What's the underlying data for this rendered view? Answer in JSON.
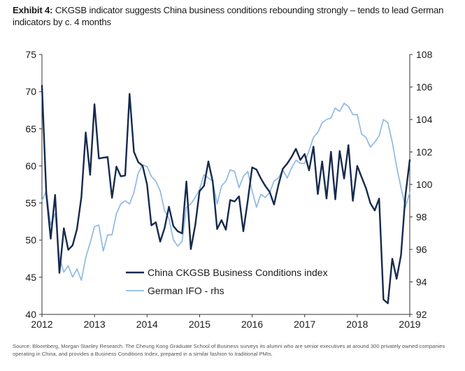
{
  "title": {
    "exhibit": "Exhibit 4:",
    "text": "CKGSB indicator suggests China business conditions rebounding strongly – tends to lead German indicators by c. 4 months"
  },
  "source": "Source: Bloomberg, Morgan Stanley Research. The Cheung Kong Graduate School of Business surveys its alumni who are senior executives at around 300 privately owned companies operating in China, and provides a Business Conditions Index, prepared in a similar fashion to traditional PMIs.",
  "colors": {
    "ckgsb": "#162a4d",
    "ifo": "#8fb9e4",
    "axis": "#333333",
    "text": "#1a1a1a"
  },
  "chart_data": {
    "type": "line",
    "title": "CKGSB indicator suggests China business conditions rebounding strongly – tends to lead German indicators by c. 4 months",
    "x_tick_labels": [
      "2012",
      "2013",
      "2014",
      "2015",
      "2016",
      "2017",
      "2018",
      "2019"
    ],
    "x_range": [
      2012.0,
      2019.0
    ],
    "y_left": {
      "range": [
        40,
        75
      ],
      "ticks": [
        "40",
        "45",
        "50",
        "55",
        "60",
        "65",
        "70",
        "75"
      ]
    },
    "y_right": {
      "range": [
        92,
        108
      ],
      "ticks": [
        "92",
        "94",
        "96",
        "98",
        "100",
        "102",
        "104",
        "106",
        "108"
      ]
    },
    "grid": false,
    "legend": {
      "position": "bottom-center",
      "entries": [
        "China CKGSB Business Conditions index",
        "German IFO - rhs"
      ]
    },
    "series": [
      {
        "name": "China CKGSB Business Conditions index",
        "axis": "left",
        "x": [
          2012.0,
          2012.083,
          2012.167,
          2012.25,
          2012.333,
          2012.417,
          2012.5,
          2012.583,
          2012.667,
          2012.75,
          2012.833,
          2012.917,
          2013.0,
          2013.083,
          2013.167,
          2013.25,
          2013.333,
          2013.417,
          2013.5,
          2013.583,
          2013.667,
          2013.75,
          2013.833,
          2013.917,
          2014.0,
          2014.083,
          2014.167,
          2014.25,
          2014.333,
          2014.417,
          2014.5,
          2014.583,
          2014.667,
          2014.75,
          2014.833,
          2014.917,
          2015.0,
          2015.083,
          2015.167,
          2015.25,
          2015.333,
          2015.417,
          2015.5,
          2015.583,
          2015.667,
          2015.75,
          2015.833,
          2015.917,
          2016.0,
          2016.083,
          2016.167,
          2016.25,
          2016.333,
          2016.417,
          2016.5,
          2016.583,
          2016.667,
          2016.75,
          2016.833,
          2016.917,
          2017.0,
          2017.083,
          2017.167,
          2017.25,
          2017.333,
          2017.417,
          2017.5,
          2017.583,
          2017.667,
          2017.75,
          2017.833,
          2017.917,
          2018.0,
          2018.083,
          2018.167,
          2018.25,
          2018.333,
          2018.417,
          2018.5,
          2018.583,
          2018.667,
          2018.75,
          2018.833,
          2018.917,
          2019.0
        ],
        "values": [
          70.8,
          56.3,
          50.2,
          56.1,
          45.6,
          51.6,
          48.7,
          49.3,
          51.5,
          55.8,
          64.5,
          58.8,
          68.3,
          61.0,
          61.1,
          61.2,
          55.7,
          59.9,
          58.6,
          58.7,
          69.7,
          61.9,
          60.5,
          60.0,
          57.5,
          52.0,
          52.4,
          49.8,
          51.6,
          54.5,
          51.9,
          51.2,
          50.9,
          57.9,
          48.8,
          52.0,
          56.6,
          57.3,
          60.6,
          57.9,
          51.5,
          52.7,
          51.4,
          55.4,
          55.2,
          55.9,
          51.2,
          55.3,
          59.8,
          59.5,
          58.3,
          57.3,
          56.5,
          54.8,
          57.4,
          59.6,
          60.3,
          61.2,
          62.3,
          60.8,
          61.6,
          59.4,
          62.6,
          56.2,
          60.6,
          55.6,
          61.9,
          55.5,
          62.0,
          58.3,
          62.8,
          55.3,
          60.0,
          58.5,
          57.0,
          55.0,
          54.0,
          55.6,
          42.0,
          41.5,
          47.5,
          44.8,
          48.0,
          56.0,
          60.8
        ]
      },
      {
        "name": "German IFO - rhs",
        "axis": "right",
        "x": [
          2012.0,
          2012.083,
          2012.167,
          2012.25,
          2012.333,
          2012.417,
          2012.5,
          2012.583,
          2012.667,
          2012.75,
          2012.833,
          2012.917,
          2013.0,
          2013.083,
          2013.167,
          2013.25,
          2013.333,
          2013.417,
          2013.5,
          2013.583,
          2013.667,
          2013.75,
          2013.833,
          2013.917,
          2014.0,
          2014.083,
          2014.167,
          2014.25,
          2014.333,
          2014.417,
          2014.5,
          2014.583,
          2014.667,
          2014.75,
          2014.833,
          2014.917,
          2015.0,
          2015.083,
          2015.167,
          2015.25,
          2015.333,
          2015.417,
          2015.5,
          2015.583,
          2015.667,
          2015.75,
          2015.833,
          2015.917,
          2016.0,
          2016.083,
          2016.167,
          2016.25,
          2016.333,
          2016.417,
          2016.5,
          2016.583,
          2016.667,
          2016.75,
          2016.833,
          2016.917,
          2017.0,
          2017.083,
          2017.167,
          2017.25,
          2017.333,
          2017.417,
          2017.5,
          2017.583,
          2017.667,
          2017.75,
          2017.833,
          2017.917,
          2018.0,
          2018.083,
          2018.167,
          2018.25,
          2018.333,
          2018.417,
          2018.5,
          2018.583,
          2018.667,
          2018.75,
          2018.833,
          2018.917,
          2019.0
        ],
        "values": [
          99.0,
          99.6,
          97.5,
          98.2,
          95.5,
          94.6,
          95.0,
          94.3,
          94.8,
          94.1,
          95.5,
          96.4,
          97.4,
          97.5,
          95.9,
          96.9,
          96.9,
          98.2,
          98.8,
          99.0,
          98.8,
          99.5,
          100.7,
          101.2,
          101.1,
          100.5,
          100.2,
          99.6,
          98.4,
          97.9,
          96.6,
          96.2,
          96.5,
          98.6,
          98.8,
          99.2,
          99.7,
          100.6,
          100.4,
          100.2,
          98.8,
          99.9,
          100.2,
          100.9,
          100.8,
          99.8,
          100.5,
          100.8,
          99.6,
          98.6,
          99.4,
          99.2,
          99.5,
          100.2,
          100.4,
          100.9,
          100.4,
          101.0,
          101.5,
          101.3,
          101.3,
          102.1,
          102.9,
          103.2,
          103.8,
          104.0,
          104.1,
          104.7,
          104.5,
          105.0,
          104.8,
          104.3,
          104.3,
          103.1,
          102.9,
          102.3,
          102.6,
          103.0,
          104.0,
          103.8,
          102.6,
          101.1,
          99.8,
          98.6,
          99.5
        ]
      }
    ]
  }
}
